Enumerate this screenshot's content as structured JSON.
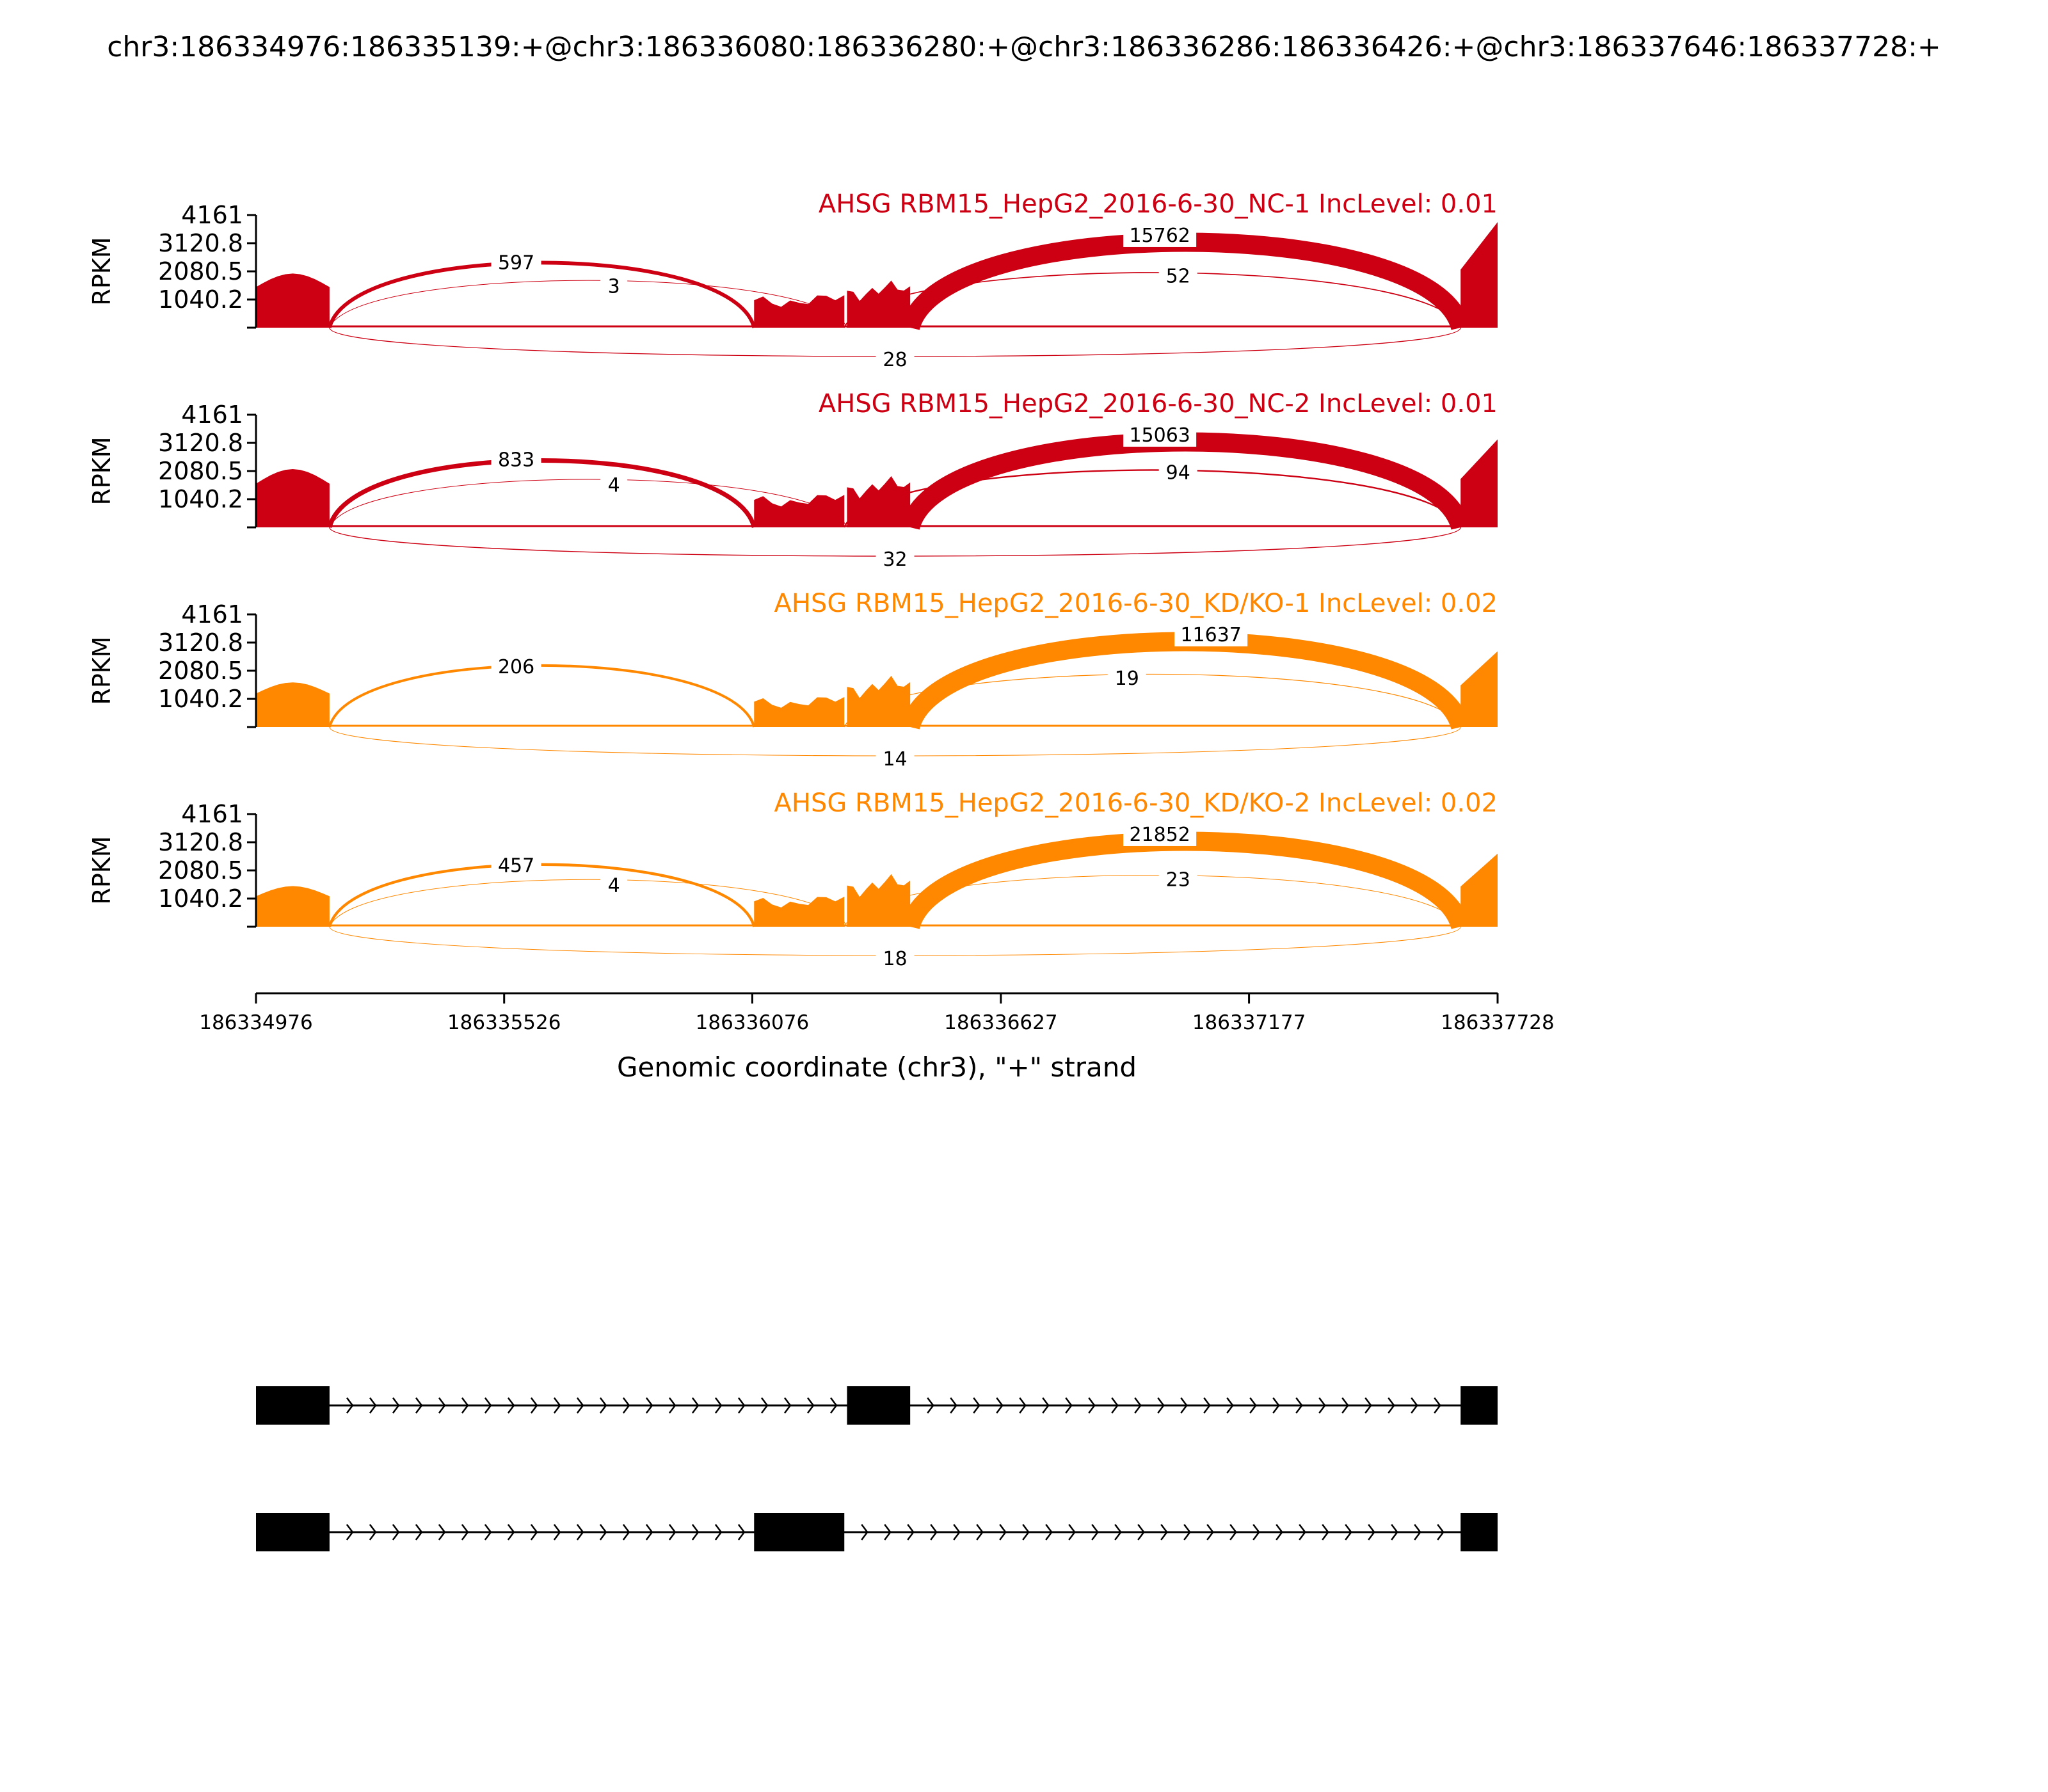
{
  "figure": {
    "title": "chr3:186334976:186335139:+@chr3:186336080:186336280:+@chr3:186336286:186336426:+@chr3:186337646:186337728:+"
  },
  "chart_data": {
    "type": "sashimi",
    "title": "chr3:186334976:186335139:+@chr3:186336080:186336280:+@chr3:186336286:186336426:+@chr3:186337646:186337728:+",
    "xlabel": "Genomic coordinate (chr3), \"+\" strand",
    "ylabel": "RPKM",
    "xlim": [
      186334976,
      186337728
    ],
    "x_ticks": [
      186334976,
      186335526,
      186336076,
      186336627,
      186337177,
      186337728
    ],
    "ylim": [
      0,
      4161
    ],
    "y_ticks": [
      1040.2,
      2080.5,
      3120.8,
      4161
    ],
    "colors": {
      "NC": "#cc0012",
      "KD": "#ff8800",
      "gene": "#000000"
    },
    "exons": [
      {
        "start": 186334976,
        "end": 186335139
      },
      {
        "start": 186336080,
        "end": 186336280
      },
      {
        "start": 186336286,
        "end": 186336426
      },
      {
        "start": 186337646,
        "end": 186337728
      }
    ],
    "tracks": [
      {
        "label": "AHSG RBM15_HepG2_2016-6-30_NC-1 IncLevel: 0.01",
        "color": "#cc0012",
        "coverage": [
          2000,
          1300,
          1750,
          3900
        ],
        "junctions": [
          {
            "from": 186335139,
            "to": 186336080,
            "count": "597",
            "side": "above"
          },
          {
            "from": 186335139,
            "to": 186336286,
            "count": "3",
            "side": "above"
          },
          {
            "from": 186336426,
            "to": 186337646,
            "count": "15762",
            "side": "above"
          },
          {
            "from": 186336280,
            "to": 186337646,
            "count": "52",
            "side": "above"
          },
          {
            "from": 186335139,
            "to": 186337646,
            "count": "28",
            "side": "below"
          }
        ]
      },
      {
        "label": "AHSG RBM15_HepG2_2016-6-30_NC-2 IncLevel: 0.01",
        "color": "#cc0012",
        "coverage": [
          2150,
          1300,
          1900,
          3250
        ],
        "junctions": [
          {
            "from": 186335139,
            "to": 186336080,
            "count": "833",
            "side": "above"
          },
          {
            "from": 186335139,
            "to": 186336286,
            "count": "4",
            "side": "above"
          },
          {
            "from": 186336426,
            "to": 186337646,
            "count": "15063",
            "side": "above"
          },
          {
            "from": 186336280,
            "to": 186337646,
            "count": "94",
            "side": "above"
          },
          {
            "from": 186335139,
            "to": 186337646,
            "count": "32",
            "side": "below"
          }
        ]
      },
      {
        "label": "AHSG RBM15_HepG2_2016-6-30_KD/KO-1 IncLevel: 0.02",
        "color": "#ff8800",
        "coverage": [
          1650,
          1200,
          1900,
          2800
        ],
        "junctions": [
          {
            "from": 186335139,
            "to": 186336080,
            "count": "206",
            "side": "above"
          },
          {
            "from": 186336426,
            "to": 186337646,
            "count": "11637",
            "side": "above"
          },
          {
            "from": 186336280,
            "to": 186337646,
            "count": "19",
            "side": "above"
          },
          {
            "from": 186335139,
            "to": 186337646,
            "count": "14",
            "side": "below"
          }
        ]
      },
      {
        "label": "AHSG RBM15_HepG2_2016-6-30_KD/KO-2 IncLevel: 0.02",
        "color": "#ff8800",
        "coverage": [
          1500,
          1200,
          1950,
          2700
        ],
        "junctions": [
          {
            "from": 186335139,
            "to": 186336080,
            "count": "457",
            "side": "above"
          },
          {
            "from": 186335139,
            "to": 186336286,
            "count": "4",
            "side": "above"
          },
          {
            "from": 186336426,
            "to": 186337646,
            "count": "21852",
            "side": "above"
          },
          {
            "from": 186336280,
            "to": 186337646,
            "count": "23",
            "side": "above"
          },
          {
            "from": 186335139,
            "to": 186337646,
            "count": "18",
            "side": "below"
          }
        ]
      }
    ],
    "isoforms": [
      {
        "exons": [
          [
            186334976,
            186335139
          ],
          [
            186336286,
            186336426
          ],
          [
            186337646,
            186337728
          ]
        ]
      },
      {
        "exons": [
          [
            186334976,
            186335139
          ],
          [
            186336080,
            186336280
          ],
          [
            186337646,
            186337728
          ]
        ]
      }
    ]
  }
}
